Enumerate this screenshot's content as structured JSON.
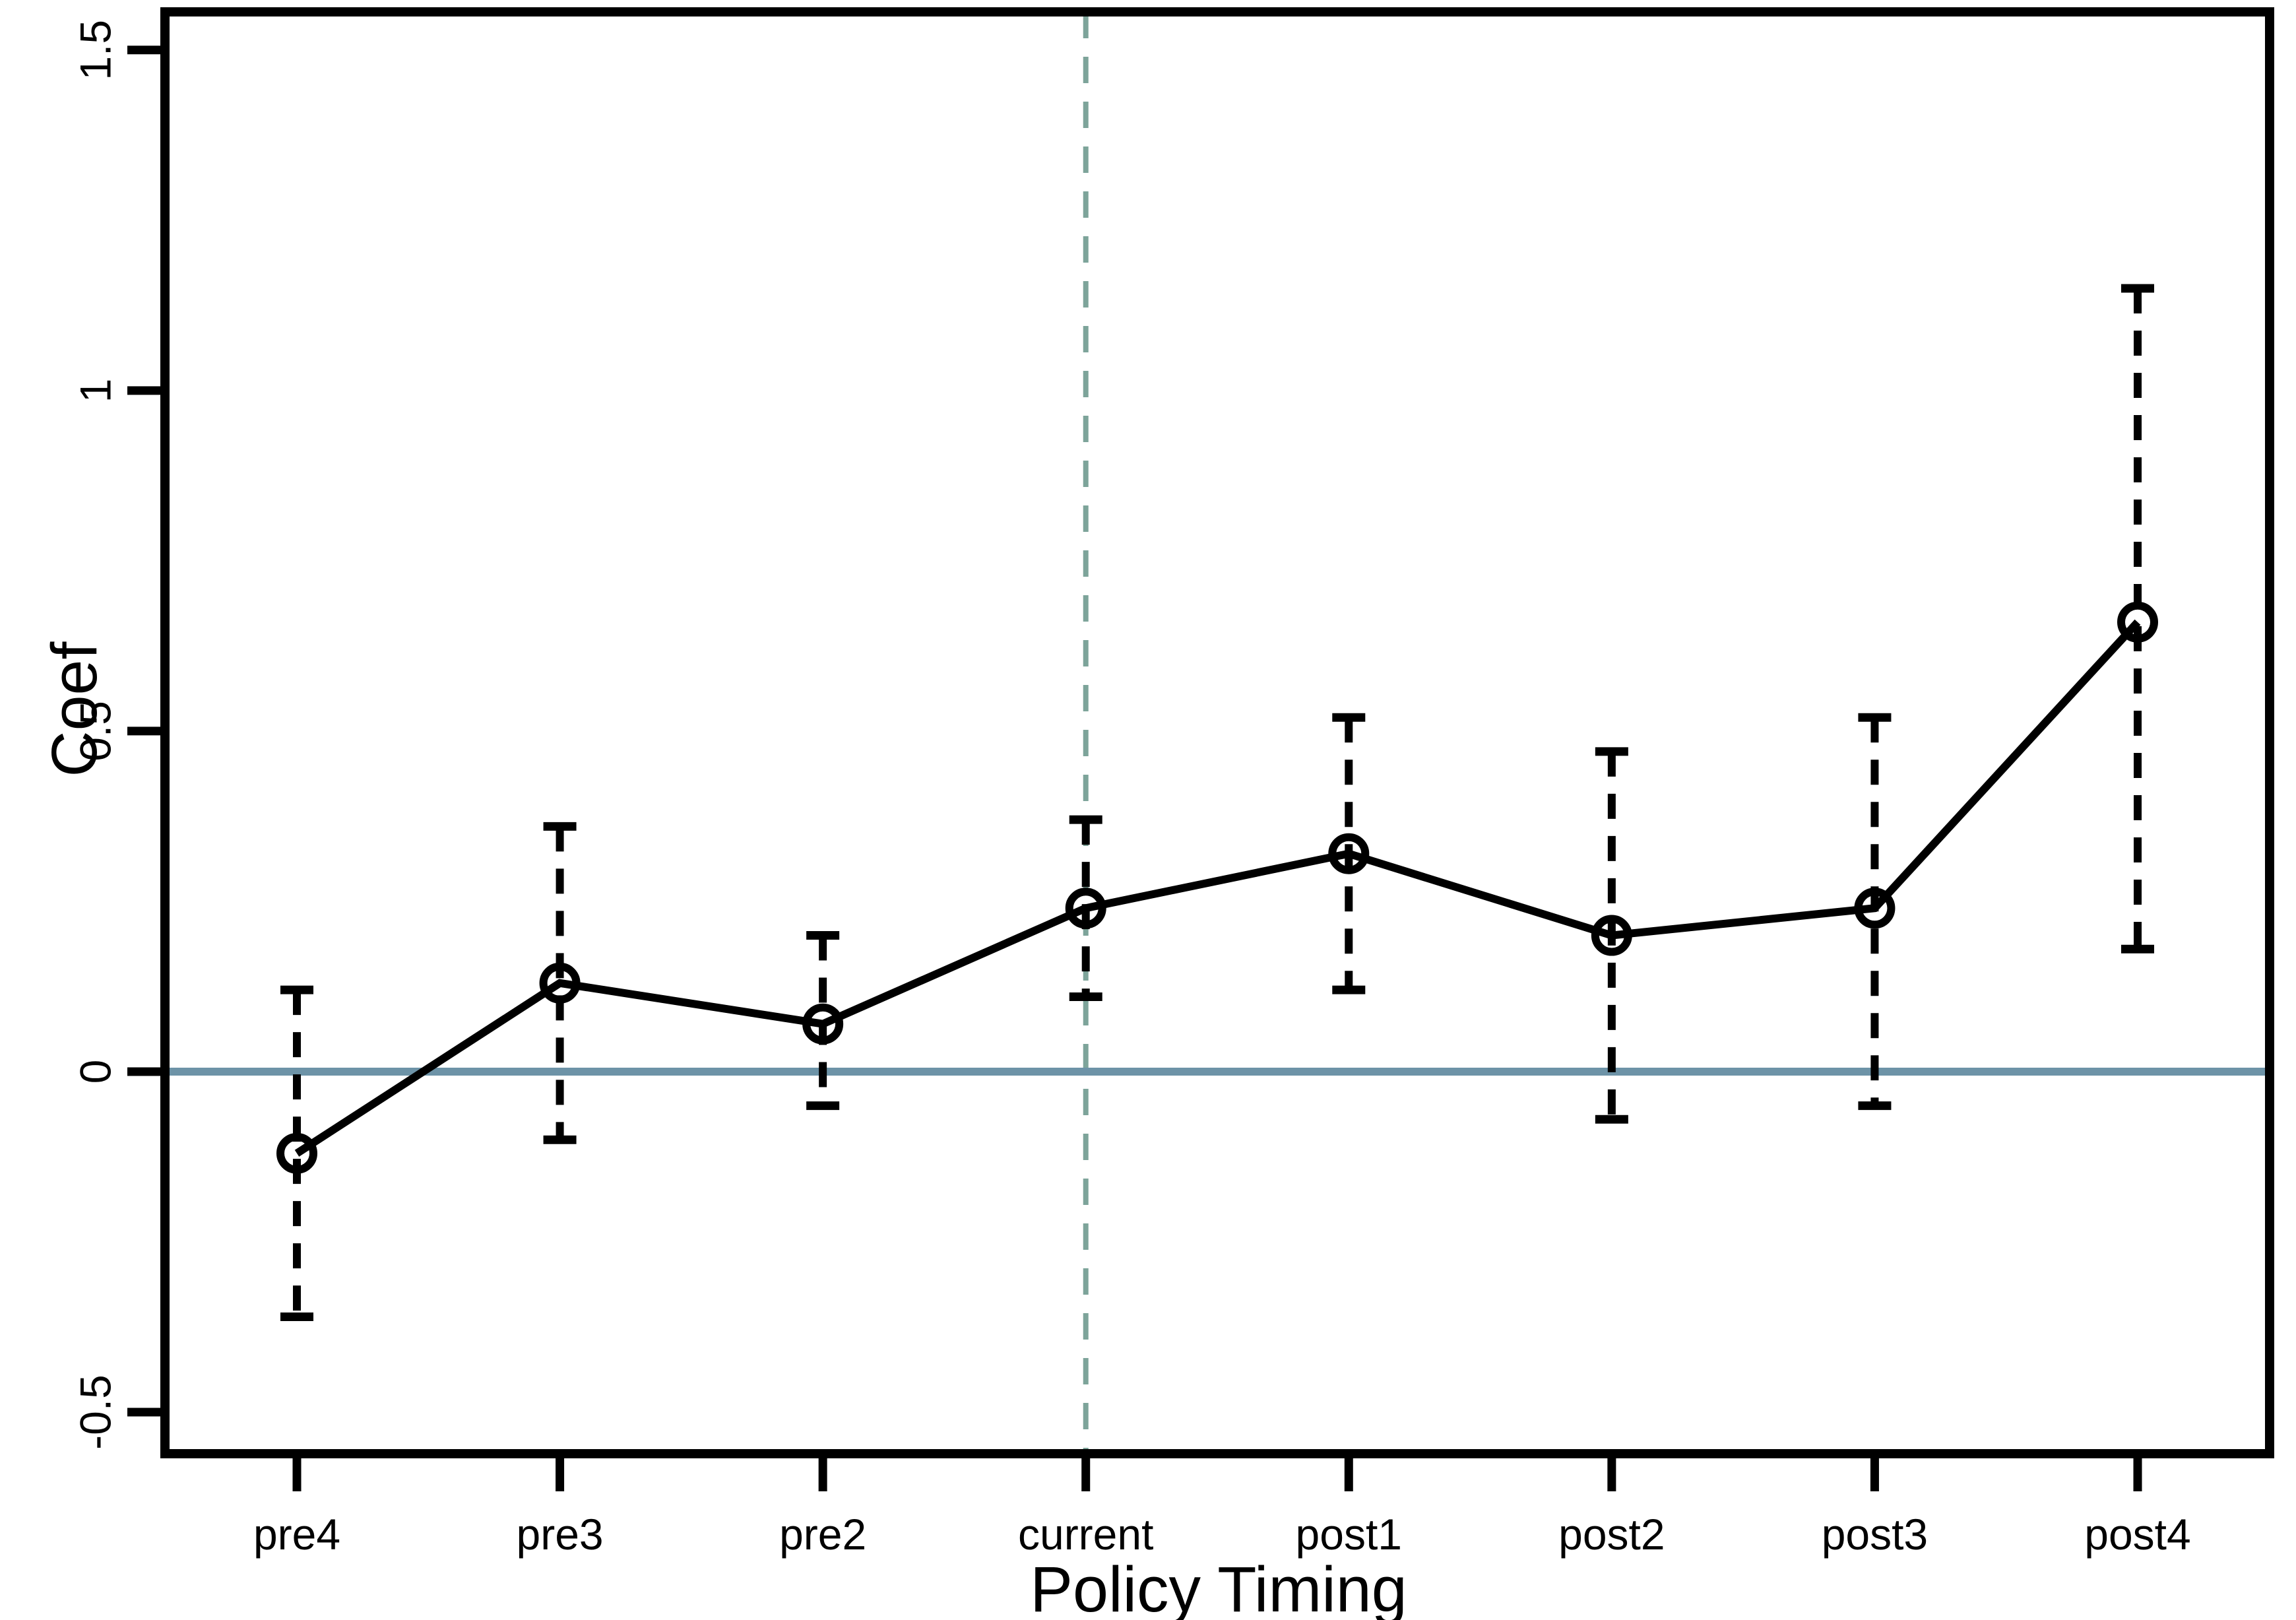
{
  "chart_data": {
    "type": "line",
    "title": "",
    "xlabel": "Policy Timing",
    "ylabel": "Coef",
    "categories": [
      "pre4",
      "pre3",
      "pre2",
      "current",
      "post1",
      "post2",
      "post3",
      "post4"
    ],
    "series": [
      {
        "name": "Coef",
        "marker": "open-circle",
        "line_style": "solid",
        "ci_style": "dashed",
        "values": [
          -0.12,
          0.13,
          0.07,
          0.24,
          0.32,
          0.2,
          0.24,
          0.66
        ],
        "ci_low": [
          -0.36,
          -0.1,
          -0.05,
          0.11,
          0.12,
          -0.07,
          -0.05,
          0.18
        ],
        "ci_high": [
          0.12,
          0.36,
          0.2,
          0.37,
          0.52,
          0.47,
          0.52,
          1.15
        ]
      }
    ],
    "yticks": [
      {
        "v": -0.5,
        "label": "-0.5"
      },
      {
        "v": 0,
        "label": "0"
      },
      {
        "v": 0.5,
        "label": "0.5"
      },
      {
        "v": 1,
        "label": "1"
      },
      {
        "v": 1.5,
        "label": "1.5"
      }
    ],
    "ylim": [
      -0.561,
      1.556
    ],
    "reference_lines": {
      "zero_line_y": 0,
      "event_line_category": "current"
    },
    "colors": {
      "series": "#000000",
      "zero_line": "#6d93a7",
      "event_line": "#7da49a",
      "frame": "#000000",
      "text": "#000000"
    },
    "legend": "none",
    "grid": false
  }
}
